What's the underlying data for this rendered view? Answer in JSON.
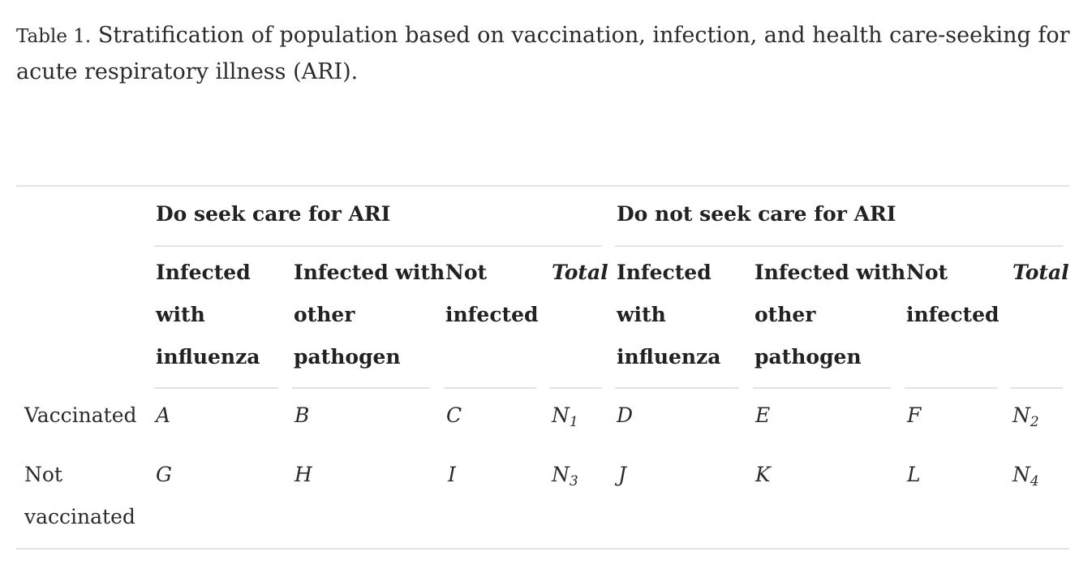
{
  "caption": {
    "label": "Table 1.",
    "text": "Stratification of population based on vaccination, infection, and health care-seeking for acute respiratory illness (ARI)."
  },
  "table": {
    "groups": [
      {
        "label": "Do seek care for ARI",
        "columns": [
          {
            "lines": [
              "Infected",
              "with",
              "influenza"
            ],
            "italic": false
          },
          {
            "lines": [
              "Infected with",
              "other",
              "pathogen"
            ],
            "italic": false
          },
          {
            "lines": [
              "Not",
              "infected"
            ],
            "italic": false
          },
          {
            "lines": [
              "Total"
            ],
            "italic": true
          }
        ]
      },
      {
        "label": "Do not seek care for ARI",
        "columns": [
          {
            "lines": [
              "Infected",
              "with",
              "influenza"
            ],
            "italic": false
          },
          {
            "lines": [
              "Infected with",
              "other",
              "pathogen"
            ],
            "italic": false
          },
          {
            "lines": [
              "Not",
              "infected"
            ],
            "italic": false
          },
          {
            "lines": [
              "Total"
            ],
            "italic": true
          }
        ]
      }
    ],
    "rows": [
      {
        "label_lines": [
          "Vaccinated"
        ],
        "cells": [
          "A",
          "B",
          "C",
          {
            "base": "N",
            "sub": "1"
          },
          "D",
          "E",
          "F",
          {
            "base": "N",
            "sub": "2"
          }
        ]
      },
      {
        "label_lines": [
          "Not",
          "vaccinated"
        ],
        "cells": [
          "G",
          "H",
          "I",
          {
            "base": "N",
            "sub": "3"
          },
          "J",
          "K",
          "L",
          {
            "base": "N",
            "sub": "4"
          }
        ]
      }
    ]
  }
}
